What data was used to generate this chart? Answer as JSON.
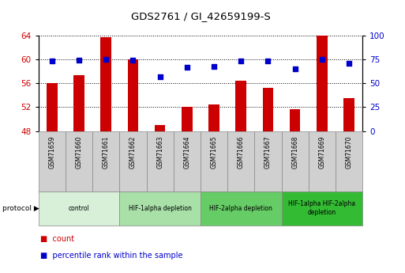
{
  "title": "GDS2761 / GI_42659199-S",
  "samples": [
    "GSM71659",
    "GSM71660",
    "GSM71661",
    "GSM71662",
    "GSM71663",
    "GSM71664",
    "GSM71665",
    "GSM71666",
    "GSM71667",
    "GSM71668",
    "GSM71669",
    "GSM71670"
  ],
  "counts": [
    56.0,
    57.4,
    63.7,
    60.0,
    49.0,
    52.1,
    52.5,
    56.4,
    55.2,
    51.6,
    64.0,
    53.5
  ],
  "percentiles": [
    73.0,
    74.0,
    75.0,
    74.5,
    57.0,
    67.0,
    67.5,
    73.0,
    73.0,
    65.0,
    75.0,
    71.0
  ],
  "ylim_left": [
    48,
    64
  ],
  "ylim_right": [
    0,
    100
  ],
  "yticks_left": [
    48,
    52,
    56,
    60,
    64
  ],
  "yticks_right": [
    0,
    25,
    50,
    75,
    100
  ],
  "bar_color": "#cc0000",
  "dot_color": "#0000cc",
  "grid_color": "#000000",
  "protocol_groups": [
    {
      "label": "control",
      "start": 0,
      "end": 2,
      "color": "#d8f0d8"
    },
    {
      "label": "HIF-1alpha depletion",
      "start": 3,
      "end": 5,
      "color": "#a8e0a8"
    },
    {
      "label": "HIF-2alpha depletion",
      "start": 6,
      "end": 8,
      "color": "#66cc66"
    },
    {
      "label": "HIF-1alpha HIF-2alpha\ndepletion",
      "start": 9,
      "end": 11,
      "color": "#33bb33"
    }
  ],
  "legend_count_label": "count",
  "legend_percentile_label": "percentile rank within the sample",
  "tick_label_color_left": "#cc0000",
  "tick_label_color_right": "#0000cc",
  "bar_width": 0.4
}
